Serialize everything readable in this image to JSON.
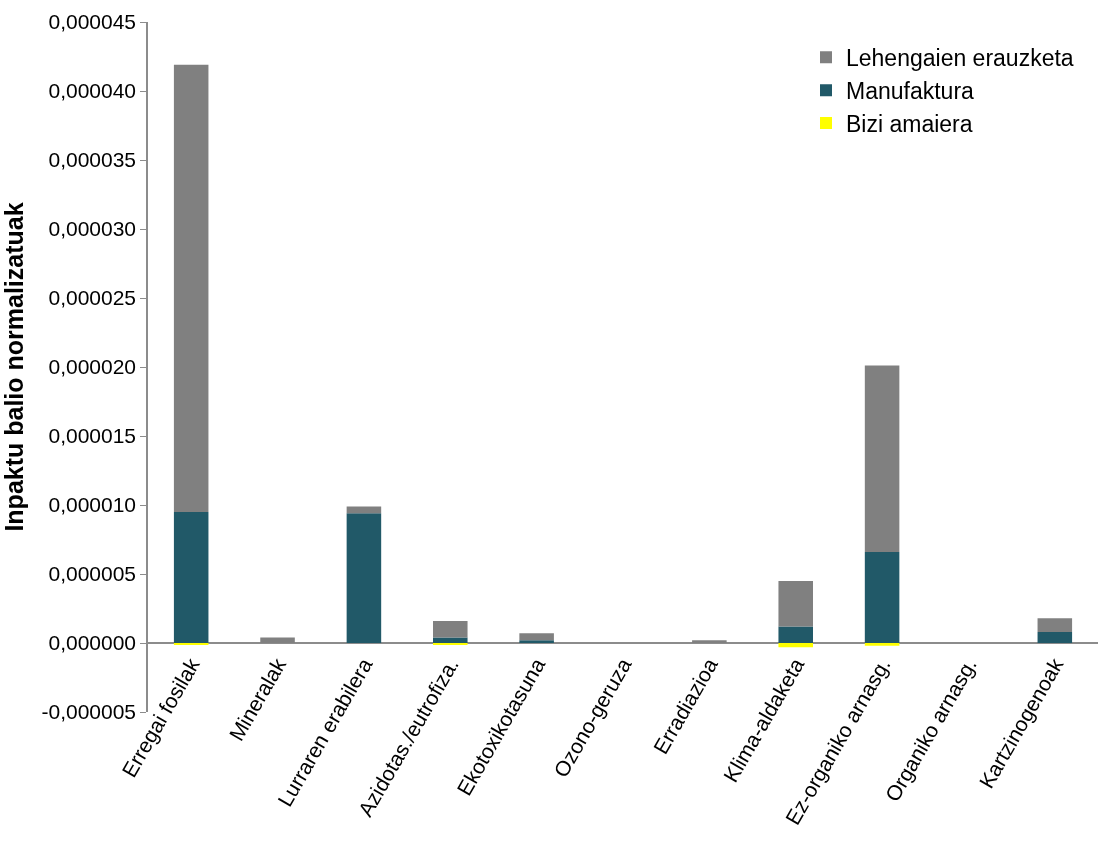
{
  "chart_data": {
    "type": "bar",
    "stacked": true,
    "ylabel": "Inpaktu balio normalizatuak",
    "categories": [
      "Erregai fosilak",
      "Mineralak",
      "Lurraren erabilera",
      "Azidotas./eutrofiza.",
      "Ekotoxikotasuna",
      "Ozono-geruza",
      "Erradiazioa",
      "Klima-aldaketa",
      "Ez-organiko arnasg.",
      "Organiko arnasg.",
      "Kartzinogenoak"
    ],
    "series": [
      {
        "name": "Bizi amaiera",
        "color": "#ffff00",
        "values": [
          -1e-07,
          null,
          null,
          -1e-07,
          null,
          null,
          null,
          -3e-07,
          -2e-07,
          null,
          null
        ]
      },
      {
        "name": "Manufaktura",
        "color": "#215968",
        "values": [
          9.5e-06,
          null,
          9.4e-06,
          4e-07,
          2e-07,
          null,
          null,
          1.2e-06,
          6.6e-06,
          null,
          8e-07
        ]
      },
      {
        "name": "Lehengaien erauzketa",
        "color": "#808080",
        "values": [
          3.24e-05,
          4e-07,
          5e-07,
          1.2e-06,
          5e-07,
          null,
          2e-07,
          3.3e-06,
          1.35e-05,
          null,
          1e-06
        ]
      }
    ],
    "ylim": [
      -5e-06,
      4.5e-05
    ],
    "yticks": [
      {
        "value": -5e-06,
        "label": "-0,000005"
      },
      {
        "value": 0,
        "label": "0,000000"
      },
      {
        "value": 5e-06,
        "label": "0,000005"
      },
      {
        "value": 1e-05,
        "label": "0,000010"
      },
      {
        "value": 1.5e-05,
        "label": "0,000015"
      },
      {
        "value": 2e-05,
        "label": "0,000020"
      },
      {
        "value": 2.5e-05,
        "label": "0,000025"
      },
      {
        "value": 3e-05,
        "label": "0,000030"
      },
      {
        "value": 3.5e-05,
        "label": "0,000035"
      },
      {
        "value": 4e-05,
        "label": "0,000040"
      },
      {
        "value": 4.5e-05,
        "label": "0,000045"
      }
    ],
    "legend": "top right"
  }
}
